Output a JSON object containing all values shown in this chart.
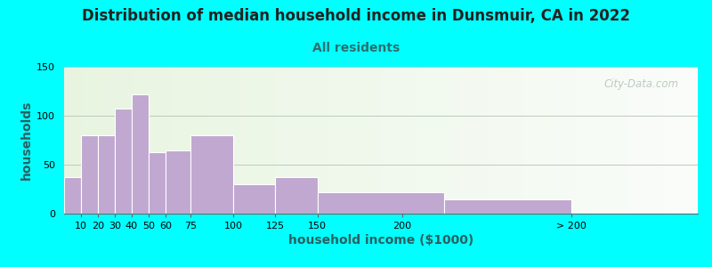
{
  "title": "Distribution of median household income in Dunsmuir, CA in 2022",
  "subtitle": "All residents",
  "xlabel": "household income ($1000)",
  "ylabel": "households",
  "background_outer": "#00FFFF",
  "bar_color": "#C0A8D0",
  "ylim": [
    0,
    150
  ],
  "yticks": [
    0,
    50,
    100,
    150
  ],
  "bar_lefts": [
    0,
    10,
    20,
    30,
    40,
    50,
    60,
    75,
    100,
    125,
    150,
    225
  ],
  "bar_widths": [
    10,
    10,
    10,
    10,
    10,
    10,
    15,
    25,
    25,
    25,
    75,
    75
  ],
  "bar_heights": [
    37,
    80,
    80,
    107,
    122,
    63,
    65,
    80,
    30,
    37,
    22,
    15
  ],
  "xtick_positions": [
    10,
    20,
    30,
    40,
    50,
    60,
    75,
    100,
    125,
    150,
    200,
    300
  ],
  "xtick_labels": [
    "10",
    "20",
    "30",
    "40",
    "50",
    "60",
    "75",
    "100",
    "125",
    "150",
    "200",
    "> 200"
  ],
  "xlim": [
    0,
    375
  ],
  "watermark": "City-Data.com",
  "title_fontsize": 12,
  "subtitle_fontsize": 10,
  "axis_label_fontsize": 10
}
